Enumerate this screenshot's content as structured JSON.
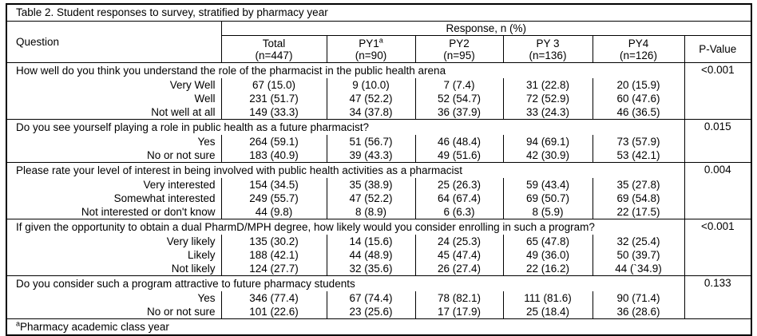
{
  "table": {
    "title": "Table 2. Student responses to survey, stratified by pharmacy year",
    "question_header": "Question",
    "response_header": "Response, n (%)",
    "pvalue_header": "P-Value",
    "columns": [
      {
        "name": "Total",
        "n": "(n=447)"
      },
      {
        "name": "PY1",
        "sup": "a",
        "n": "(n=90)"
      },
      {
        "name": "PY2",
        "n": "(n=95)"
      },
      {
        "name": "PY 3",
        "n": "(n=136)"
      },
      {
        "name": "PY4",
        "n": "(n=126)"
      }
    ],
    "blocks": [
      {
        "question": "How well do you think you understand the role of the pharmacist in the public health arena",
        "p_value": "<0.001",
        "rows": [
          {
            "label": "Very Well",
            "values": [
              "67 (15.0)",
              "9 (10.0)",
              "7 (7.4)",
              "31 (22.8)",
              "20 (15.9)"
            ]
          },
          {
            "label": "Well",
            "values": [
              "231 (51.7)",
              "47 (52.2)",
              "52 (54.7)",
              "72 (52.9)",
              "60 (47.6)"
            ]
          },
          {
            "label": "Not well at all",
            "values": [
              "149 (33.3)",
              "34 (37.8)",
              "36 (37.9)",
              "33 (24.3)",
              "46 (36.5)"
            ]
          }
        ]
      },
      {
        "question": "Do you see yourself playing a role in public health as a future pharmacist?",
        "p_value": "0.015",
        "rows": [
          {
            "label": "Yes",
            "values": [
              "264 (59.1)",
              "51 (56.7)",
              "46 (48.4)",
              "94 (69.1)",
              "73 (57.9)"
            ]
          },
          {
            "label": "No or not sure",
            "values": [
              "183 (40.9)",
              "39 (43.3)",
              "49 (51.6)",
              "42 (30.9)",
              "53 (42.1)"
            ]
          }
        ]
      },
      {
        "question": "Please rate your level of interest in being involved with public health activities as a pharmacist",
        "p_value": "0.004",
        "rows": [
          {
            "label": "Very interested",
            "values": [
              "154 (34.5)",
              "35 (38.9)",
              "25 (26.3)",
              "59 (43.4)",
              "35 (27.8)"
            ]
          },
          {
            "label": "Somewhat interested",
            "values": [
              "249 (55.7)",
              "47 (52.2)",
              "64 (67.4)",
              "69 (50.7)",
              "69 (54.8)"
            ]
          },
          {
            "label": "Not interested or don't know",
            "values": [
              "44 (9.8)",
              "8 (8.9)",
              "6 (6.3)",
              "8 (5.9)",
              "22 (17.5)"
            ]
          }
        ]
      },
      {
        "question": "If given the opportunity to obtain a dual PharmD/MPH degree, how likely would you consider enrolling in such a program?",
        "p_value": "<0.001",
        "rows": [
          {
            "label": "Very likely",
            "values": [
              "135 (30.2)",
              "14 (15.6)",
              "24 (25.3)",
              "65 (47.8)",
              "32 (25.4)"
            ]
          },
          {
            "label": "Likely",
            "values": [
              "188 (42.1)",
              "44 (48.9)",
              "45 (47.4)",
              "49 (36.0)",
              "50 (39.7)"
            ]
          },
          {
            "label": "Not likely",
            "values": [
              "124 (27.7)",
              "32 (35.6)",
              "26 (27.4)",
              "22 (16.2)",
              "44 (`34.9)"
            ]
          }
        ]
      },
      {
        "question": "Do you consider such a program attractive to future pharmacy students",
        "p_value": "0.133",
        "rows": [
          {
            "label": "Yes",
            "values": [
              "346 (77.4)",
              "67 (74.4)",
              "78 (82.1)",
              "111 (81.6)",
              "90 (71.4)"
            ]
          },
          {
            "label": "No or not sure",
            "values": [
              "101 (22.6)",
              "23 (25.6)",
              "17 (17.9)",
              "25 (18.4)",
              "36 (28.6)"
            ]
          }
        ]
      }
    ],
    "footnote_sup": "a",
    "footnote": "Pharmacy academic class year"
  }
}
